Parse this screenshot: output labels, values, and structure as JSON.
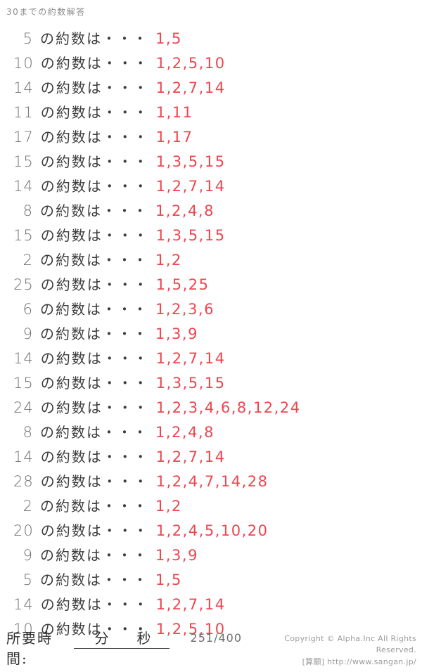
{
  "colors": {
    "title": "#8c8c8c",
    "number": "#6f6f6f",
    "label": "#3c3c3c",
    "answer": "#f0454e",
    "footer_strong": "#2f2f2f",
    "footer_muted": "#9a9a9a",
    "page_indicator": "#6f6f6f",
    "underline": "#444444"
  },
  "header": {
    "title": "30までの約数解答"
  },
  "list": {
    "row_prefix": "の約数は・・・",
    "rows": [
      {
        "number": "5",
        "answer": "1,5"
      },
      {
        "number": "10",
        "answer": "1,2,5,10"
      },
      {
        "number": "14",
        "answer": "1,2,7,14"
      },
      {
        "number": "11",
        "answer": "1,11"
      },
      {
        "number": "17",
        "answer": "1,17"
      },
      {
        "number": "15",
        "answer": "1,3,5,15"
      },
      {
        "number": "14",
        "answer": "1,2,7,14"
      },
      {
        "number": "8",
        "answer": "1,2,4,8"
      },
      {
        "number": "15",
        "answer": "1,3,5,15"
      },
      {
        "number": "2",
        "answer": "1,2"
      },
      {
        "number": "25",
        "answer": "1,5,25"
      },
      {
        "number": "6",
        "answer": "1,2,3,6"
      },
      {
        "number": "9",
        "answer": "1,3,9"
      },
      {
        "number": "14",
        "answer": "1,2,7,14"
      },
      {
        "number": "15",
        "answer": "1,3,5,15"
      },
      {
        "number": "24",
        "answer": "1,2,3,4,6,8,12,24"
      },
      {
        "number": "8",
        "answer": "1,2,4,8"
      },
      {
        "number": "14",
        "answer": "1,2,7,14"
      },
      {
        "number": "28",
        "answer": "1,2,4,7,14,28"
      },
      {
        "number": "2",
        "answer": "1,2"
      },
      {
        "number": "20",
        "answer": "1,2,4,5,10,20"
      },
      {
        "number": "9",
        "answer": "1,3,9"
      },
      {
        "number": "5",
        "answer": "1,5"
      },
      {
        "number": "14",
        "answer": "1,2,7,14"
      },
      {
        "number": "10",
        "answer": "1,2,5,10"
      }
    ]
  },
  "footer": {
    "time_label": "所要時間:",
    "minutes_label": "分",
    "seconds_label": "秒",
    "page_indicator": "251/400",
    "copyright_line1": "Copyright ©  Alpha.Inc All Rights Reserved.",
    "copyright_line2": "[算願] http://www.sangan.jp/"
  }
}
